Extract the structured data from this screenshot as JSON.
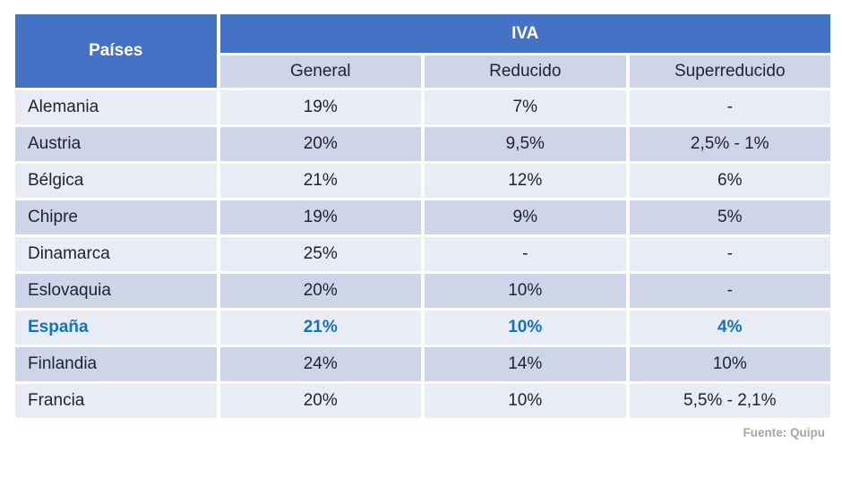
{
  "chart_data": {
    "type": "table",
    "header": {
      "countries_label": "Países",
      "group_label": "IVA",
      "subcolumns": [
        "General",
        "Reducido",
        "Superreducido"
      ]
    },
    "rows": [
      {
        "country": "Alemania",
        "general": "19%",
        "reducido": "7%",
        "superreducido": "-"
      },
      {
        "country": "Austria",
        "general": "20%",
        "reducido": "9,5%",
        "superreducido": "2,5% - 1%"
      },
      {
        "country": "Bélgica",
        "general": "21%",
        "reducido": "12%",
        "superreducido": "6%"
      },
      {
        "country": "Chipre",
        "general": "19%",
        "reducido": "9%",
        "superreducido": "5%"
      },
      {
        "country": "Dinamarca",
        "general": "25%",
        "reducido": "-",
        "superreducido": "-"
      },
      {
        "country": "Eslovaquia",
        "general": "20%",
        "reducido": "10%",
        "superreducido": "-"
      },
      {
        "country": "España",
        "general": "21%",
        "reducido": "10%",
        "superreducido": "4%",
        "highlighted": true
      },
      {
        "country": "Finlandia",
        "general": "24%",
        "reducido": "14%",
        "superreducido": "10%"
      },
      {
        "country": "Francia",
        "general": "20%",
        "reducido": "10%",
        "superreducido": "5,5% - 2,1%"
      }
    ],
    "source_note": "Fuente: Quipu",
    "layout": {
      "highlighted_row": "España",
      "alternating_rows": true,
      "legend_position": "none",
      "grid": "white-gaps"
    }
  },
  "colors": {
    "header_blue": "#4472C4",
    "header_text": "#FFFFFF",
    "row_light": "#EAECF5",
    "row_dark": "#CED5E8",
    "subheader_bg": "#CED5E8",
    "body_text": "#20242E",
    "highlight_text": "#1173BA",
    "source_text": "#A3A6B0",
    "background": "#FFFFFF"
  }
}
